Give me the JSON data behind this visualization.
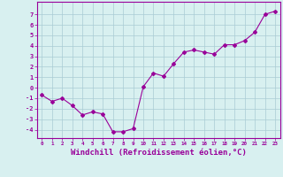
{
  "x": [
    0,
    1,
    2,
    3,
    4,
    5,
    6,
    7,
    8,
    9,
    10,
    11,
    12,
    13,
    14,
    15,
    16,
    17,
    18,
    19,
    20,
    21,
    22,
    23
  ],
  "y": [
    -0.7,
    -1.3,
    -1.0,
    -1.7,
    -2.6,
    -2.3,
    -2.5,
    -4.2,
    -4.2,
    -3.9,
    0.1,
    1.4,
    1.1,
    2.3,
    3.4,
    3.6,
    3.4,
    3.2,
    4.1,
    4.1,
    4.5,
    5.3,
    7.0,
    7.3
  ],
  "line_color": "#990099",
  "marker": "D",
  "markersize": 2.0,
  "linewidth": 0.8,
  "xlabel": "Windchill (Refroidissement éolien,°C)",
  "xlabel_fontsize": 6.5,
  "ylabel_ticks": [
    -4,
    -3,
    -2,
    -1,
    0,
    1,
    2,
    3,
    4,
    5,
    6,
    7
  ],
  "xtick_labels": [
    "0",
    "1",
    "2",
    "3",
    "4",
    "5",
    "6",
    "7",
    "8",
    "9",
    "10",
    "11",
    "12",
    "13",
    "14",
    "15",
    "16",
    "17",
    "18",
    "19",
    "20",
    "21",
    "22",
    "23"
  ],
  "ylim": [
    -4.8,
    8.2
  ],
  "xlim": [
    -0.5,
    23.5
  ],
  "bg_color": "#d8f0f0",
  "grid_color": "#aaccd4",
  "tick_color": "#990099",
  "spine_color": "#990099"
}
